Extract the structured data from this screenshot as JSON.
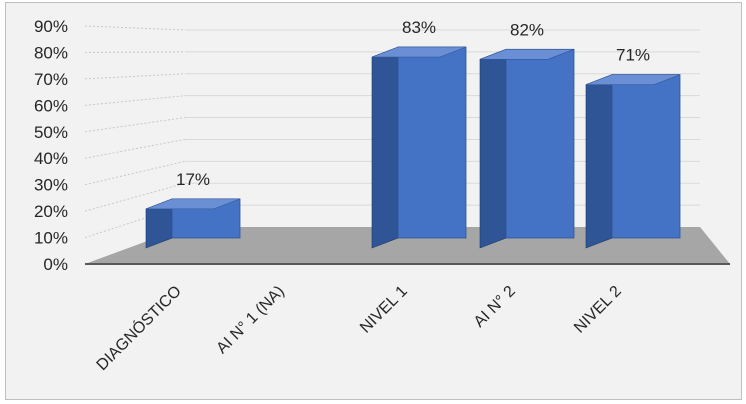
{
  "chart_data": {
    "type": "bar",
    "categories": [
      "DIAGNÓSTICO",
      "AI N° 1 (NA)",
      "NIVEL 1",
      "AI N° 2",
      "NIVEL 2"
    ],
    "values": [
      17,
      null,
      83,
      82,
      71
    ],
    "data_labels": [
      "17%",
      "",
      "83%",
      "82%",
      "71%"
    ],
    "y_ticks": [
      "0%",
      "10%",
      "20%",
      "30%",
      "40%",
      "50%",
      "60%",
      "70%",
      "80%",
      "90%"
    ],
    "ylim": [
      0,
      90
    ],
    "style": "3d-column",
    "grid": true,
    "legend": "none",
    "colors": {
      "bar_front": "#4472c4",
      "bar_side": "#2f5597",
      "bar_top": "#6a8fd4",
      "floor": "#a6a6a6",
      "background": "#f2f2f2"
    }
  }
}
